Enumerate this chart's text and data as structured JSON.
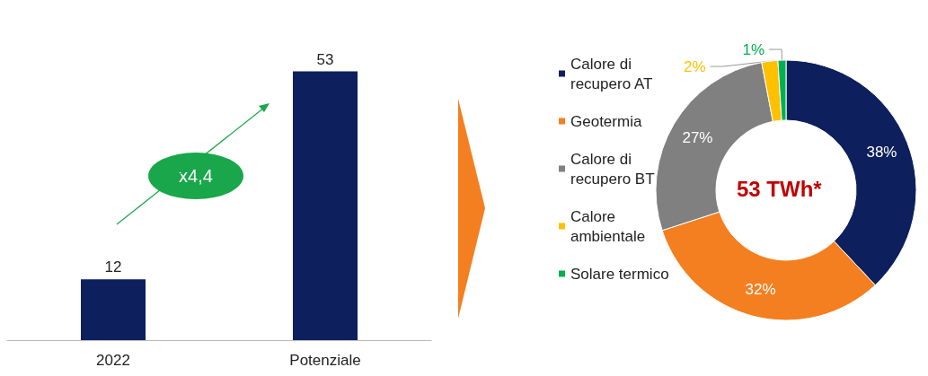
{
  "chart_data": [
    {
      "type": "bar",
      "categories": [
        "2022",
        "Potenziale"
      ],
      "values": [
        12,
        53
      ],
      "color": "#0d1f5c",
      "data_labels": true,
      "annotations": [
        "x4,4"
      ],
      "legend": false
    },
    {
      "type": "donut",
      "categories": [
        "Calore di recupero AT",
        "Geotermia",
        "Calore di recupero BT",
        "Calore ambientale",
        "Solare termico"
      ],
      "values": [
        38,
        32,
        27,
        2,
        1
      ],
      "value_labels": [
        "38%",
        "32%",
        "27%",
        "2%",
        "1%"
      ],
      "colors": [
        "#0d1f5c",
        "#f47f20",
        "#808080",
        "#ffc000",
        "#00b050"
      ],
      "annotations": [
        "53 TWh*"
      ],
      "legend": "left"
    }
  ]
}
